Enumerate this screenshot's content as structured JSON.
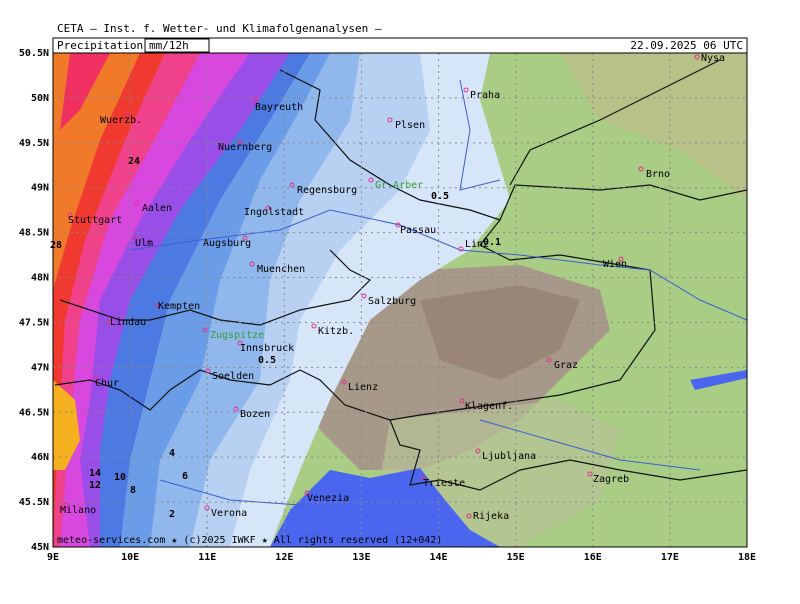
{
  "header": {
    "title": "CETA — Inst. f. Wetter- und Klimafolgenanalysen —",
    "field": "Precipitation",
    "unit": "mm/12h",
    "valid_time": "22.09.2025  06 UTC"
  },
  "axes": {
    "yticks": [
      {
        "value": 50.5,
        "label": "50.5N"
      },
      {
        "value": 50,
        "label": "50N"
      },
      {
        "value": 49.5,
        "label": "49.5N"
      },
      {
        "value": 49,
        "label": "49N"
      },
      {
        "value": 48.5,
        "label": "48.5N"
      },
      {
        "value": 48,
        "label": "48N"
      },
      {
        "value": 47.5,
        "label": "47.5N"
      },
      {
        "value": 47,
        "label": "47N"
      },
      {
        "value": 46.5,
        "label": "46.5N"
      },
      {
        "value": 46,
        "label": "46N"
      },
      {
        "value": 45.5,
        "label": "45.5N"
      },
      {
        "value": 45,
        "label": "45N"
      }
    ],
    "xticks": [
      {
        "value": 9,
        "label": "9E"
      },
      {
        "value": 10,
        "label": "10E"
      },
      {
        "value": 11,
        "label": "11E"
      },
      {
        "value": 12,
        "label": "12E"
      },
      {
        "value": 13,
        "label": "13E"
      },
      {
        "value": 14,
        "label": "14E"
      },
      {
        "value": 15,
        "label": "15E"
      },
      {
        "value": 16,
        "label": "16E"
      },
      {
        "value": 17,
        "label": "17E"
      },
      {
        "value": 18,
        "label": "18E"
      }
    ]
  },
  "cities": [
    "Nysa",
    "Praha",
    "Plsen",
    "Bayreuth",
    "Wuerzb.",
    "Nuernberg",
    "Regensburg",
    "Gr.Arber",
    "Brno",
    "Aalen",
    "Stuttgart",
    "Ingolstadt",
    "Passau",
    "Ulm",
    "Augsburg",
    "Linz",
    "Wien",
    "Muenchen",
    "Salzburg",
    "Kempten",
    "Lindau",
    "Zugspitze",
    "Kitzb.",
    "Innsbruck",
    "Graz",
    "Soelden",
    "Chur",
    "Lienz",
    "Klagenf.",
    "Bozen",
    "Ljubljana",
    "Zagreb",
    "Trieste",
    "Venezia",
    "Milano",
    "Verona",
    "Rijeka"
  ],
  "contour_labels": [
    24,
    28,
    0.5,
    0.1,
    0.5,
    4,
    14,
    10,
    6,
    12,
    8,
    2
  ],
  "footer": "meteo-services.com ★ (c)2025 IWKF ★ All rights reserved (12+042)"
}
